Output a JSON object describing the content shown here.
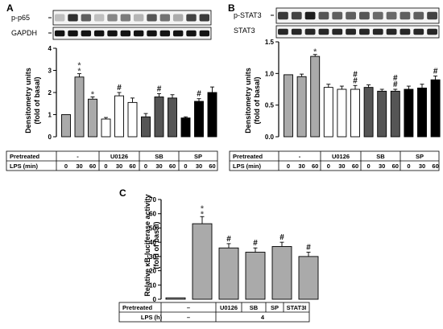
{
  "panels": [
    {
      "letter": "A",
      "blot_labels": [
        "p-p65",
        "GAPDH"
      ],
      "ylabel_lines": [
        "Densitometry units",
        "(fold of basal)"
      ],
      "table": {
        "row_labels": [
          "Pretreated",
          "LPS (min)"
        ],
        "groups": [
          "-",
          "U0126",
          "SB",
          "SP"
        ],
        "lps": [
          "0",
          "30",
          "60",
          "0",
          "30",
          "60",
          "0",
          "30",
          "60",
          "0",
          "30",
          "60"
        ]
      }
    },
    {
      "letter": "B",
      "blot_labels": [
        "p-STAT3",
        "STAT3"
      ],
      "ylabel_lines": [
        "Densitometry units",
        "(fold of basal)"
      ],
      "table": {
        "row_labels": [
          "Pretreated",
          "LPS (min)"
        ],
        "groups": [
          "-",
          "U0126",
          "SB",
          "SP"
        ],
        "lps": [
          "0",
          "30",
          "60",
          "0",
          "30",
          "60",
          "0",
          "30",
          "60",
          "0",
          "30",
          "60"
        ]
      }
    },
    {
      "letter": "C",
      "ylabel_lines": [
        "Relative κB-luciferase activity",
        "(fold of basal)"
      ],
      "table": {
        "row_labels": [
          "Pretreated",
          "LPS (h)"
        ],
        "groups": [
          "–",
          "U0126",
          "SB",
          "SP",
          "STAT3I"
        ],
        "lps": [
          "–",
          "4"
        ]
      }
    }
  ],
  "chart_data": [
    {
      "type": "bar",
      "panel": "A",
      "categories": [
        "0",
        "30",
        "60",
        "0",
        "30",
        "60",
        "0",
        "30",
        "60",
        "0",
        "30",
        "60"
      ],
      "values": [
        1.0,
        2.7,
        1.7,
        0.8,
        1.85,
        1.55,
        0.9,
        1.8,
        1.75,
        0.85,
        1.6,
        2.0
      ],
      "errors": [
        0.0,
        0.15,
        0.1,
        0.07,
        0.15,
        0.2,
        0.15,
        0.15,
        0.15,
        0.05,
        0.12,
        0.25
      ],
      "fills": [
        "#aaaaaa",
        "#aaaaaa",
        "#aaaaaa",
        "#ffffff",
        "#ffffff",
        "#ffffff",
        "#555555",
        "#555555",
        "#555555",
        "#000000",
        "#000000",
        "#000000"
      ],
      "annotations": [
        "",
        "**",
        "*",
        "",
        "#",
        "",
        "",
        "#",
        "",
        "",
        "#",
        ""
      ],
      "ylim": [
        0,
        4
      ],
      "yticks": [
        0,
        1,
        2,
        3,
        4
      ]
    },
    {
      "type": "bar",
      "panel": "B",
      "categories": [
        "0",
        "30",
        "60",
        "0",
        "30",
        "60",
        "0",
        "30",
        "60",
        "0",
        "30",
        "60"
      ],
      "values": [
        0.98,
        0.95,
        1.27,
        0.78,
        0.75,
        0.75,
        0.78,
        0.72,
        0.72,
        0.75,
        0.77,
        0.9
      ],
      "errors": [
        0.0,
        0.04,
        0.03,
        0.05,
        0.05,
        0.06,
        0.04,
        0.03,
        0.03,
        0.05,
        0.06,
        0.06
      ],
      "fills": [
        "#aaaaaa",
        "#aaaaaa",
        "#aaaaaa",
        "#ffffff",
        "#ffffff",
        "#ffffff",
        "#555555",
        "#555555",
        "#555555",
        "#000000",
        "#000000",
        "#000000"
      ],
      "annotations": [
        "",
        "",
        "*",
        "",
        "",
        "##",
        "",
        "",
        "##",
        "",
        "",
        "#"
      ],
      "ylim": [
        0,
        1.5
      ],
      "yticks": [
        0,
        0.5,
        1.0,
        1.5
      ]
    },
    {
      "type": "bar",
      "panel": "C",
      "categories": [
        "–",
        "–",
        "U0126",
        "SB",
        "SP",
        "STAT3I"
      ],
      "values": [
        1,
        53,
        36,
        33,
        37,
        30
      ],
      "errors": [
        0,
        5,
        3,
        3,
        3,
        3
      ],
      "fills": [
        "#aaaaaa",
        "#aaaaaa",
        "#aaaaaa",
        "#aaaaaa",
        "#aaaaaa",
        "#aaaaaa"
      ],
      "annotations": [
        "",
        "**",
        "#",
        "#",
        "#",
        "#"
      ],
      "ylim": [
        0,
        70
      ],
      "yticks": [
        0,
        10,
        20,
        30,
        40,
        50,
        60,
        70
      ]
    }
  ]
}
